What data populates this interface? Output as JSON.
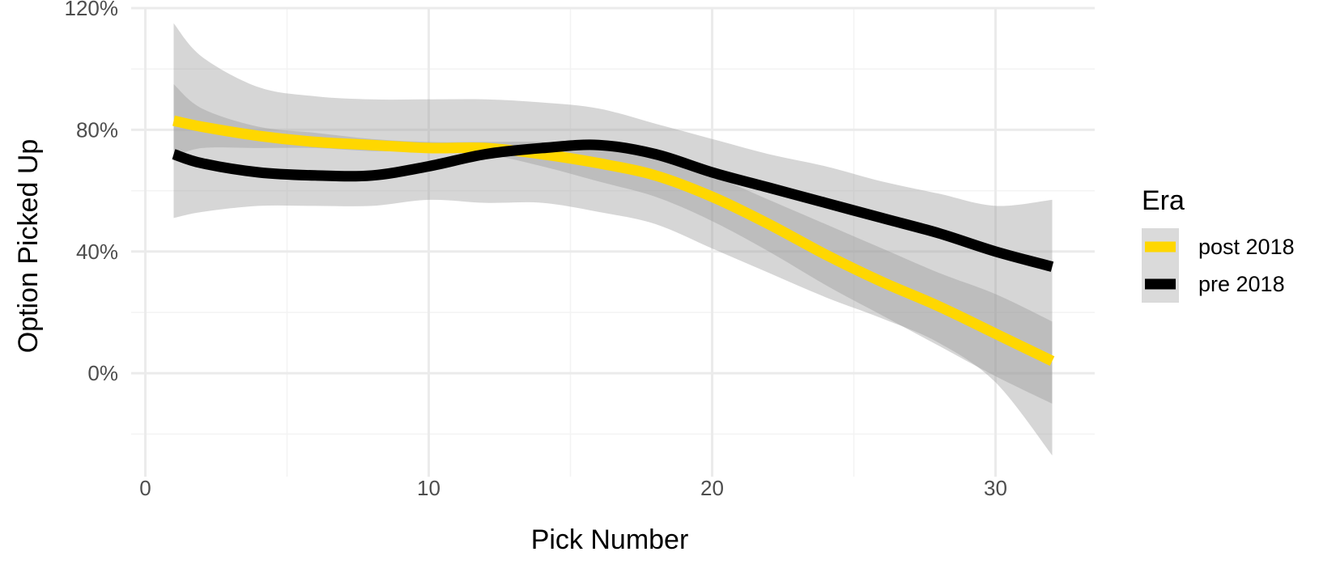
{
  "chart_data": {
    "type": "line",
    "title": "",
    "xlabel": "Pick Number",
    "ylabel": "Option Picked Up",
    "xlim": [
      -0.5,
      33.5
    ],
    "ylim": [
      -0.34,
      1.2
    ],
    "x_ticks": [
      0,
      10,
      20,
      30
    ],
    "x_tick_labels": [
      "0",
      "10",
      "20",
      "30"
    ],
    "y_ticks": [
      0,
      0.4,
      0.8,
      1.2
    ],
    "y_tick_labels": [
      "0%",
      "40%",
      "80%",
      "120%"
    ],
    "grid": true,
    "legend": {
      "title": "Era",
      "position": "right",
      "entries": [
        "post 2018",
        "pre 2018"
      ]
    },
    "series": [
      {
        "name": "post 2018",
        "color": "#FFD700",
        "x": [
          1,
          2,
          4,
          6,
          8,
          10,
          12,
          14,
          16,
          18,
          20,
          22,
          24,
          26,
          28,
          30,
          32
        ],
        "values": [
          0.83,
          0.81,
          0.78,
          0.76,
          0.75,
          0.74,
          0.74,
          0.72,
          0.69,
          0.65,
          0.58,
          0.49,
          0.39,
          0.3,
          0.22,
          0.13,
          0.04
        ],
        "ci_upper": [
          0.95,
          0.87,
          0.81,
          0.79,
          0.77,
          0.76,
          0.76,
          0.76,
          0.75,
          0.71,
          0.65,
          0.57,
          0.49,
          0.41,
          0.33,
          0.26,
          0.17
        ],
        "ci_lower": [
          0.71,
          0.74,
          0.74,
          0.74,
          0.73,
          0.73,
          0.72,
          0.68,
          0.63,
          0.58,
          0.5,
          0.4,
          0.29,
          0.19,
          0.09,
          -0.01,
          -0.1
        ]
      },
      {
        "name": "pre 2018",
        "color": "#000000",
        "x": [
          1,
          2,
          4,
          6,
          8,
          10,
          12,
          14,
          16,
          18,
          20,
          22,
          24,
          26,
          28,
          30,
          32
        ],
        "values": [
          0.72,
          0.69,
          0.66,
          0.65,
          0.65,
          0.68,
          0.72,
          0.74,
          0.75,
          0.72,
          0.66,
          0.61,
          0.56,
          0.51,
          0.46,
          0.4,
          0.35
        ],
        "ci_upper": [
          1.15,
          1.04,
          0.94,
          0.91,
          0.9,
          0.9,
          0.9,
          0.89,
          0.87,
          0.82,
          0.77,
          0.72,
          0.68,
          0.63,
          0.59,
          0.55,
          0.57
        ],
        "ci_lower": [
          0.51,
          0.53,
          0.55,
          0.55,
          0.55,
          0.57,
          0.56,
          0.56,
          0.53,
          0.49,
          0.41,
          0.33,
          0.25,
          0.18,
          0.1,
          -0.03,
          -0.27
        ]
      }
    ]
  },
  "theme": {
    "ribbon_color": "#999999",
    "grid_major_color": "#EBEBEB",
    "grid_minor_color": "#F3F3F3",
    "axis_text_color": "#4D4D4D",
    "title_text_color": "#000000",
    "legend_key_background": "#DADADA"
  }
}
